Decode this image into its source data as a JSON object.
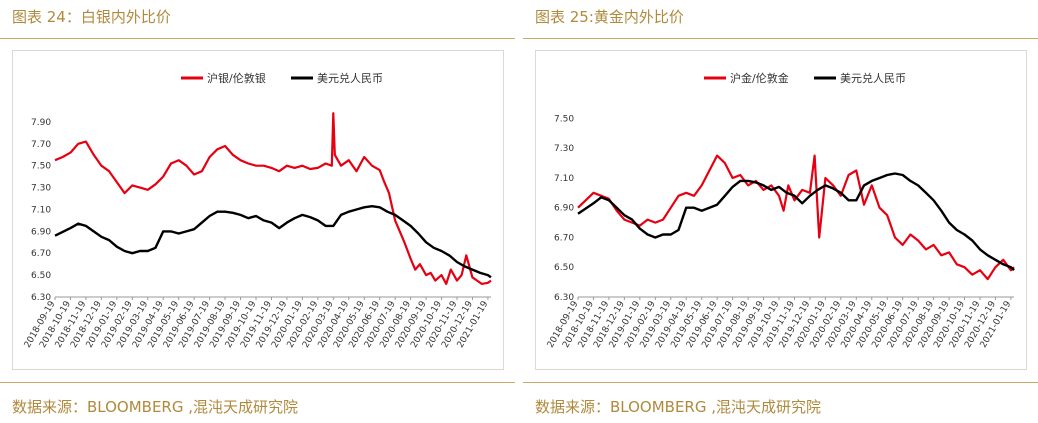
{
  "panels": [
    {
      "title": "图表 24：白银内外比价",
      "source": "数据来源：BLOOMBERG ,混沌天成研究院",
      "chart_data": {
        "type": "line",
        "ylim": [
          6.3,
          8.0
        ],
        "yticks": [
          "7.90",
          "7.70",
          "7.50",
          "7.30",
          "7.10",
          "6.90",
          "6.70",
          "6.50",
          "6.30"
        ],
        "ytick_values": [
          7.9,
          7.7,
          7.5,
          7.3,
          7.1,
          6.9,
          6.7,
          6.5,
          6.3
        ],
        "x_ticks": [
          "2018-09-19",
          "2018-10-19",
          "2018-11-19",
          "2018-12-19",
          "2019-01-19",
          "2019-02-19",
          "2019-03-19",
          "2019-04-19",
          "2019-05-19",
          "2019-06-19",
          "2019-07-19",
          "2019-08-19",
          "2019-09-19",
          "2019-10-19",
          "2019-11-19",
          "2019-12-19",
          "2020-01-19",
          "2020-02-19",
          "2020-03-19",
          "2020-04-19",
          "2020-05-19",
          "2020-06-19",
          "2020-07-19",
          "2020-08-19",
          "2020-09-19",
          "2020-10-19",
          "2020-11-19",
          "2020-12-19",
          "2021-01-19"
        ],
        "x_index_range": [
          0,
          28.2
        ],
        "grid": false,
        "legend_position": "top-center",
        "series": [
          {
            "name": "沪银/伦敦银",
            "color": "#e60012",
            "x": [
              0,
              0.5,
              1,
              1.5,
              2,
              2.5,
              3,
              3.5,
              4,
              4.5,
              5,
              5.5,
              6,
              6.5,
              7,
              7.5,
              8,
              8.5,
              9,
              9.5,
              10,
              10.5,
              11,
              11.5,
              12,
              12.5,
              13,
              13.5,
              14,
              14.5,
              15,
              15.5,
              16,
              16.5,
              17,
              17.5,
              17.9,
              18,
              18.1,
              18.5,
              19,
              19.5,
              20,
              20.5,
              21,
              21.3,
              21.6,
              22,
              22.3,
              22.6,
              23,
              23.3,
              23.6,
              24,
              24.3,
              24.6,
              25,
              25.3,
              25.6,
              26,
              26.3,
              26.6,
              27,
              27.3,
              27.6,
              28,
              28.2
            ],
            "y": [
              7.55,
              7.58,
              7.62,
              7.7,
              7.72,
              7.6,
              7.5,
              7.45,
              7.35,
              7.25,
              7.32,
              7.3,
              7.28,
              7.33,
              7.4,
              7.52,
              7.55,
              7.5,
              7.42,
              7.45,
              7.58,
              7.65,
              7.68,
              7.6,
              7.55,
              7.52,
              7.5,
              7.5,
              7.48,
              7.45,
              7.5,
              7.48,
              7.5,
              7.47,
              7.48,
              7.52,
              7.5,
              7.98,
              7.6,
              7.5,
              7.55,
              7.45,
              7.58,
              7.5,
              7.46,
              7.35,
              7.25,
              7.0,
              6.9,
              6.8,
              6.65,
              6.55,
              6.6,
              6.5,
              6.52,
              6.45,
              6.5,
              6.42,
              6.55,
              6.45,
              6.5,
              6.68,
              6.48,
              6.45,
              6.42,
              6.43,
              6.45
            ]
          },
          {
            "name": "美元兑人民币",
            "color": "#000000",
            "x": [
              0,
              1,
              1.5,
              2,
              2.5,
              3,
              3.5,
              4,
              4.5,
              5,
              5.5,
              6,
              6.5,
              7,
              7.5,
              8,
              8.5,
              9,
              9.5,
              10,
              10.5,
              11,
              11.5,
              12,
              12.5,
              13,
              13.5,
              14,
              14.5,
              15,
              15.5,
              16,
              16.5,
              17,
              17.5,
              18,
              18.5,
              19,
              19.5,
              20,
              20.5,
              21,
              21.5,
              22,
              22.5,
              23,
              23.5,
              24,
              24.5,
              25,
              25.5,
              26,
              26.5,
              27,
              27.5,
              28,
              28.2
            ],
            "y": [
              6.86,
              6.93,
              6.97,
              6.95,
              6.9,
              6.85,
              6.82,
              6.76,
              6.72,
              6.7,
              6.72,
              6.72,
              6.75,
              6.9,
              6.9,
              6.88,
              6.9,
              6.92,
              6.98,
              7.04,
              7.08,
              7.08,
              7.07,
              7.05,
              7.02,
              7.04,
              7.0,
              6.98,
              6.93,
              6.98,
              7.02,
              7.05,
              7.03,
              7.0,
              6.95,
              6.95,
              7.05,
              7.08,
              7.1,
              7.12,
              7.13,
              7.12,
              7.08,
              7.05,
              7.0,
              6.95,
              6.88,
              6.8,
              6.75,
              6.72,
              6.68,
              6.62,
              6.58,
              6.55,
              6.52,
              6.5,
              6.48
            ]
          }
        ]
      }
    },
    {
      "title": "图表 25:黄金内外比价",
      "source": "数据来源：BLOOMBERG ,混沌天成研究院",
      "chart_data": {
        "type": "line",
        "ylim": [
          6.3,
          7.55
        ],
        "yticks": [
          "7.50",
          "7.30",
          "7.10",
          "6.90",
          "6.70",
          "6.50",
          "6.30"
        ],
        "ytick_values": [
          7.5,
          7.3,
          7.1,
          6.9,
          6.7,
          6.5,
          6.3
        ],
        "x_ticks": [
          "2018-09-19",
          "2018-10-19",
          "2018-11-19",
          "2018-12-19",
          "2019-01-19",
          "2019-02-19",
          "2019-03-19",
          "2019-04-19",
          "2019-05-19",
          "2019-06-19",
          "2019-07-19",
          "2019-08-19",
          "2019-09-19",
          "2019-10-19",
          "2019-11-19",
          "2019-12-19",
          "2020-01-19",
          "2020-02-19",
          "2020-03-19",
          "2020-04-19",
          "2020-05-19",
          "2020-06-19",
          "2020-07-19",
          "2020-08-19",
          "2020-09-19",
          "2020-10-19",
          "2020-11-19",
          "2020-12-19",
          "2021-01-19"
        ],
        "x_index_range": [
          0,
          28.2
        ],
        "grid": false,
        "legend_position": "top-center",
        "series": [
          {
            "name": "沪金/伦敦金",
            "color": "#e60012",
            "x": [
              0,
              0.5,
              1,
              1.5,
              2,
              2.5,
              3,
              3.5,
              4,
              4.5,
              5,
              5.5,
              6,
              6.5,
              7,
              7.5,
              8,
              8.5,
              9,
              9.5,
              10,
              10.5,
              11,
              11.5,
              12,
              12.5,
              13,
              13.3,
              13.6,
              14,
              14.5,
              15,
              15.3,
              15.6,
              16,
              16.5,
              17,
              17.5,
              18,
              18.5,
              19,
              19.5,
              20,
              20.5,
              21,
              21.5,
              22,
              22.5,
              23,
              23.5,
              24,
              24.5,
              25,
              25.5,
              26,
              26.5,
              27,
              27.5,
              28,
              28.2
            ],
            "y": [
              6.9,
              6.95,
              7.0,
              6.98,
              6.96,
              6.88,
              6.82,
              6.8,
              6.78,
              6.82,
              6.8,
              6.82,
              6.9,
              6.98,
              7.0,
              6.98,
              7.05,
              7.15,
              7.25,
              7.2,
              7.1,
              7.12,
              7.05,
              7.08,
              7.02,
              7.05,
              6.98,
              6.88,
              7.05,
              6.95,
              7.02,
              7.0,
              7.25,
              6.7,
              7.1,
              7.05,
              6.98,
              7.12,
              7.15,
              6.92,
              7.05,
              6.9,
              6.85,
              6.7,
              6.65,
              6.72,
              6.68,
              6.62,
              6.65,
              6.58,
              6.6,
              6.52,
              6.5,
              6.45,
              6.48,
              6.42,
              6.5,
              6.55,
              6.48,
              6.5
            ]
          },
          {
            "name": "美元兑人民币",
            "color": "#000000",
            "x": [
              0,
              1,
              1.5,
              2,
              2.5,
              3,
              3.5,
              4,
              4.5,
              5,
              5.5,
              6,
              6.5,
              7,
              7.5,
              8,
              8.5,
              9,
              9.5,
              10,
              10.5,
              11,
              11.5,
              12,
              12.5,
              13,
              13.5,
              14,
              14.5,
              15,
              15.5,
              16,
              16.5,
              17,
              17.5,
              18,
              18.5,
              19,
              19.5,
              20,
              20.5,
              21,
              21.5,
              22,
              22.5,
              23,
              23.5,
              24,
              24.5,
              25,
              25.5,
              26,
              26.5,
              27,
              27.5,
              28,
              28.2
            ],
            "y": [
              6.86,
              6.93,
              6.97,
              6.95,
              6.9,
              6.85,
              6.82,
              6.76,
              6.72,
              6.7,
              6.72,
              6.72,
              6.75,
              6.9,
              6.9,
              6.88,
              6.9,
              6.92,
              6.98,
              7.04,
              7.08,
              7.08,
              7.07,
              7.05,
              7.02,
              7.04,
              7.0,
              6.98,
              6.93,
              6.98,
              7.02,
              7.05,
              7.03,
              7.0,
              6.95,
              6.95,
              7.05,
              7.08,
              7.1,
              7.12,
              7.13,
              7.12,
              7.08,
              7.05,
              7.0,
              6.95,
              6.88,
              6.8,
              6.75,
              6.72,
              6.68,
              6.62,
              6.58,
              6.55,
              6.52,
              6.5,
              6.48
            ]
          }
        ]
      }
    }
  ]
}
